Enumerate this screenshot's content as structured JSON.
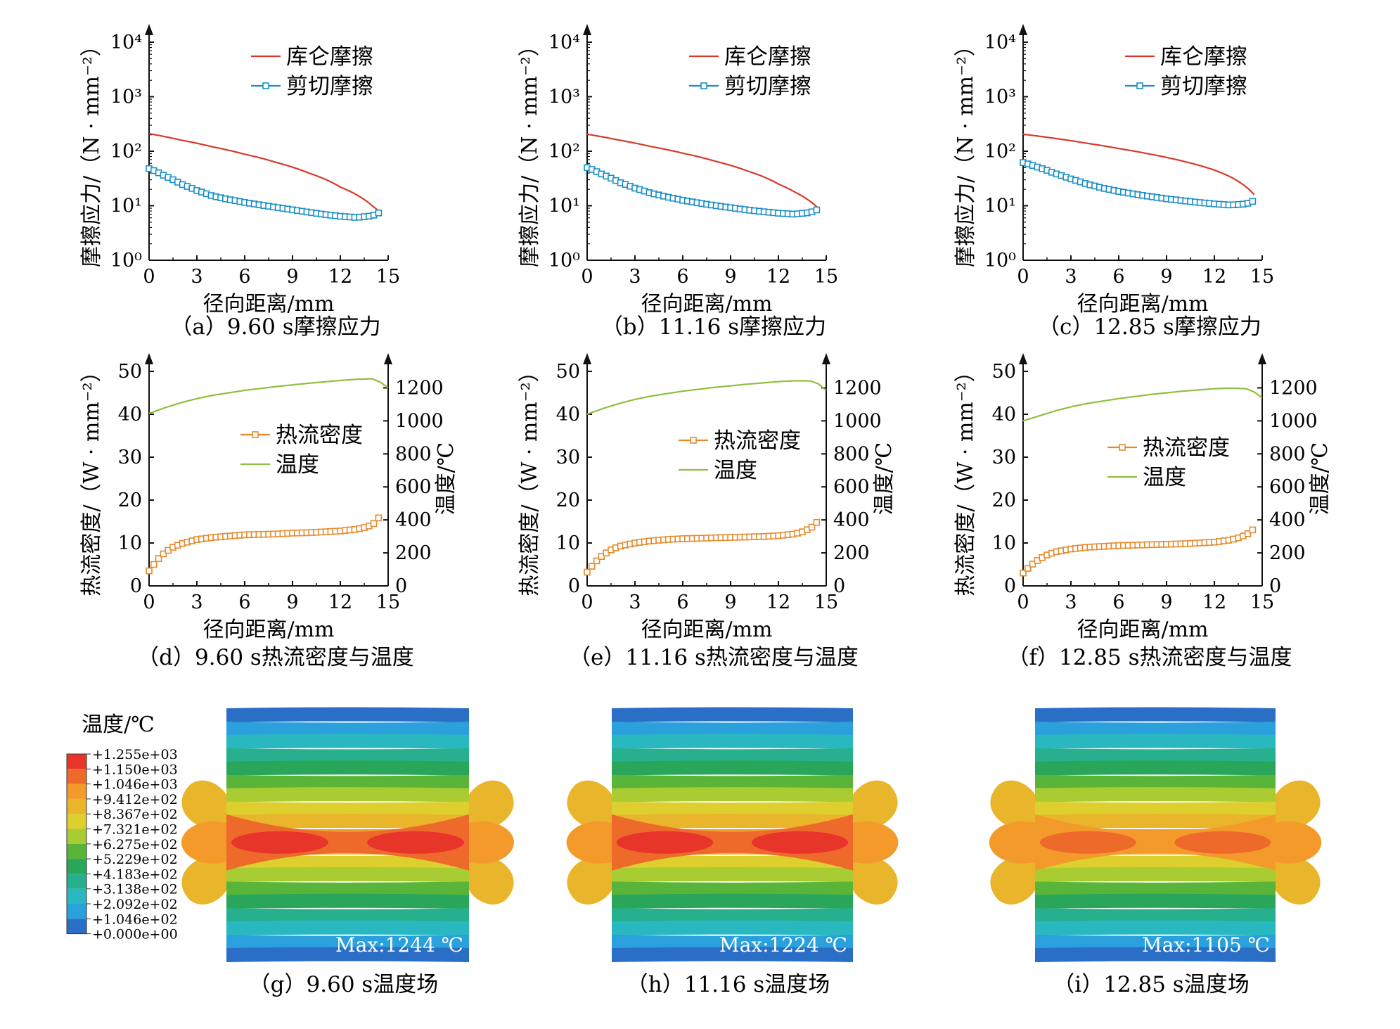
{
  "colors": {
    "coulomb": "#d83a2a",
    "shear": "#1a8fc6",
    "heat_flux": "#e58a2b",
    "temperature": "#8fbf3f",
    "axis": "#111111"
  },
  "colorbar": {
    "title": "温度/℃",
    "labels": [
      "+1.255e+03",
      "+1.150e+03",
      "+1.046e+03",
      "+9.412e+02",
      "+8.367e+02",
      "+7.321e+02",
      "+6.275e+02",
      "+5.229e+02",
      "+4.183e+02",
      "+3.138e+02",
      "+2.092e+02",
      "+1.046e+02",
      "+0.000e+00"
    ],
    "colors": [
      "#e8352a",
      "#ee6a2a",
      "#f39a2a",
      "#e9b52b",
      "#dccf2e",
      "#a9cc33",
      "#58b53a",
      "#2aa65a",
      "#26b08e",
      "#2ab8c0",
      "#2aa0dc",
      "#2a6ec6",
      "#2a3596"
    ]
  },
  "chart_data": [
    {
      "type": "line",
      "panel": "a",
      "caption": "（a）9.60 s摩擦应力",
      "xlabel": "径向距离/mm",
      "ylabel": "摩擦应力/（N · mm⁻²）",
      "xlim": [
        0,
        15
      ],
      "ylim": [
        1,
        10000
      ],
      "yscale": "log",
      "xticks": [
        "0",
        "3",
        "6",
        "9",
        "12",
        "15"
      ],
      "yticks": [
        "10⁰",
        "10¹",
        "10²",
        "10³",
        "10⁴"
      ],
      "legend": "top-right",
      "series": [
        {
          "name": "库仑摩擦",
          "style": "line",
          "x": [
            0,
            2,
            4,
            6,
            8,
            10,
            12,
            13,
            14,
            14.5
          ],
          "y": [
            210,
            160,
            120,
            88,
            62,
            40,
            22,
            16,
            10,
            7.5
          ]
        },
        {
          "name": "剪切摩擦",
          "style": "line-square",
          "x": [
            0,
            1,
            2,
            3,
            4,
            5,
            6,
            7,
            8,
            9,
            10,
            11,
            12,
            13,
            14,
            14.5
          ],
          "y": [
            48,
            35,
            25,
            19,
            15,
            13,
            11.5,
            10.3,
            9.3,
            8.4,
            7.6,
            6.9,
            6.4,
            6.1,
            6.5,
            7.6
          ]
        }
      ]
    },
    {
      "type": "line",
      "panel": "b",
      "caption": "（b）11.16 s摩擦应力",
      "xlabel": "径向距离/mm",
      "ylabel": "摩擦应力/（N · mm⁻²）",
      "xlim": [
        0,
        15
      ],
      "ylim": [
        1,
        10000
      ],
      "yscale": "log",
      "xticks": [
        "0",
        "3",
        "6",
        "9",
        "12",
        "15"
      ],
      "yticks": [
        "10⁰",
        "10¹",
        "10²",
        "10³",
        "10⁴"
      ],
      "legend": "top-right",
      "series": [
        {
          "name": "库仑摩擦",
          "style": "line",
          "x": [
            0,
            2,
            4,
            6,
            8,
            10,
            12,
            13,
            14,
            14.5
          ],
          "y": [
            205,
            160,
            122,
            92,
            66,
            44,
            25,
            18,
            12,
            9
          ]
        },
        {
          "name": "剪切摩擦",
          "style": "line-square",
          "x": [
            0,
            1,
            2,
            3,
            4,
            5,
            6,
            7,
            8,
            9,
            10,
            11,
            12,
            13,
            14,
            14.5
          ],
          "y": [
            50,
            37,
            27,
            21,
            17,
            14.5,
            12.6,
            11.2,
            10.1,
            9.2,
            8.4,
            7.8,
            7.3,
            7.0,
            7.5,
            8.6
          ]
        }
      ]
    },
    {
      "type": "line",
      "panel": "c",
      "caption": "（c）12.85 s摩擦应力",
      "xlabel": "径向距离/mm",
      "ylabel": "摩擦应力/（N · mm⁻²）",
      "xlim": [
        0,
        15
      ],
      "ylim": [
        1,
        10000
      ],
      "yscale": "log",
      "xticks": [
        "0",
        "3",
        "6",
        "9",
        "12",
        "15"
      ],
      "yticks": [
        "10⁰",
        "10¹",
        "10²",
        "10³",
        "10⁴"
      ],
      "legend": "top-right",
      "series": [
        {
          "name": "库仑摩擦",
          "style": "line",
          "x": [
            0,
            2,
            4,
            6,
            8,
            10,
            12,
            13,
            14,
            14.5
          ],
          "y": [
            205,
            172,
            140,
            112,
            88,
            66,
            45,
            34,
            22,
            16
          ]
        },
        {
          "name": "剪切摩擦",
          "style": "line-square",
          "x": [
            0,
            1,
            2,
            3,
            4,
            5,
            6,
            7,
            8,
            9,
            10,
            11,
            12,
            13,
            14,
            14.5
          ],
          "y": [
            62,
            50,
            39,
            31,
            25,
            21,
            18.3,
            16.3,
            14.7,
            13.4,
            12.4,
            11.5,
            10.8,
            10.3,
            10.8,
            12.3
          ]
        }
      ]
    },
    {
      "type": "line",
      "panel": "d",
      "caption": "（d）9.60 s热流密度与温度",
      "xlabel": "径向距离/mm",
      "ylabel": "热流密度/（W · mm⁻²）",
      "y2label": "温度/℃",
      "xlim": [
        0,
        15
      ],
      "ylim": [
        0,
        50
      ],
      "y2lim": [
        0,
        1300
      ],
      "xticks": [
        "0",
        "3",
        "6",
        "9",
        "12",
        "15"
      ],
      "yticks": [
        "0",
        "10",
        "20",
        "30",
        "40",
        "50"
      ],
      "y2ticks": [
        "0",
        "200",
        "400",
        "600",
        "800",
        "1000",
        "1200"
      ],
      "legend": "center-right",
      "series": [
        {
          "name": "热流密度",
          "axis": "left",
          "style": "line-square",
          "x": [
            0,
            0.5,
            1,
            1.5,
            2,
            3,
            4,
            5,
            6,
            7,
            8,
            9,
            10,
            11,
            12,
            13,
            13.5,
            14,
            14.3,
            14.5
          ],
          "y": [
            3.5,
            6,
            7.8,
            9,
            9.8,
            10.8,
            11.3,
            11.6,
            11.9,
            12.0,
            12.1,
            12.3,
            12.4,
            12.6,
            12.8,
            13.2,
            13.6,
            14.2,
            15.2,
            16.5
          ]
        },
        {
          "name": "温度",
          "axis": "right",
          "style": "line",
          "x": [
            0,
            1,
            2,
            3,
            4,
            6,
            8,
            10,
            12,
            13,
            14,
            14.5,
            15
          ],
          "y": [
            1045,
            1080,
            1110,
            1135,
            1155,
            1185,
            1208,
            1228,
            1245,
            1252,
            1255,
            1235,
            1200
          ]
        }
      ]
    },
    {
      "type": "line",
      "panel": "e",
      "caption": "（e）11.16 s热流密度与温度",
      "xlabel": "径向距离/mm",
      "ylabel": "热流密度/（W · mm⁻²）",
      "y2label": "温度/℃",
      "xlim": [
        0,
        15
      ],
      "ylim": [
        0,
        50
      ],
      "y2lim": [
        0,
        1300
      ],
      "xticks": [
        "0",
        "3",
        "6",
        "9",
        "12",
        "15"
      ],
      "yticks": [
        "0",
        "10",
        "20",
        "30",
        "40",
        "50"
      ],
      "y2ticks": [
        "0",
        "200",
        "400",
        "600",
        "800",
        "1000",
        "1200"
      ],
      "legend": "center-right",
      "series": [
        {
          "name": "热流密度",
          "axis": "left",
          "style": "line-square",
          "x": [
            0,
            0.5,
            1,
            1.5,
            2,
            3,
            4,
            5,
            6,
            7,
            8,
            9,
            10,
            11,
            12,
            13,
            13.5,
            14,
            14.3,
            14.5
          ],
          "y": [
            3.2,
            5.5,
            7.2,
            8.4,
            9.2,
            10.0,
            10.5,
            10.8,
            11.0,
            11.1,
            11.2,
            11.3,
            11.4,
            11.5,
            11.7,
            12.1,
            12.6,
            13.4,
            14.3,
            15.3
          ]
        },
        {
          "name": "温度",
          "axis": "right",
          "style": "line",
          "x": [
            0,
            1,
            2,
            3,
            4,
            6,
            8,
            10,
            12,
            13,
            14,
            14.5,
            15
          ],
          "y": [
            1040,
            1075,
            1105,
            1130,
            1150,
            1180,
            1203,
            1222,
            1238,
            1243,
            1242,
            1225,
            1185
          ]
        }
      ]
    },
    {
      "type": "line",
      "panel": "f",
      "caption": "（f）12.85 s热流密度与温度",
      "xlabel": "径向距离/mm",
      "ylabel": "热流密度/（W · mm⁻²）",
      "y2label": "温度/℃",
      "xlim": [
        0,
        15
      ],
      "ylim": [
        0,
        50
      ],
      "y2lim": [
        0,
        1300
      ],
      "xticks": [
        "0",
        "3",
        "6",
        "9",
        "12",
        "15"
      ],
      "yticks": [
        "0",
        "10",
        "20",
        "30",
        "40",
        "50"
      ],
      "y2ticks": [
        "0",
        "200",
        "400",
        "600",
        "800",
        "1000",
        "1200"
      ],
      "legend": "center-right",
      "series": [
        {
          "name": "热流密度",
          "axis": "left",
          "style": "line-square",
          "x": [
            0,
            0.5,
            1,
            1.5,
            2,
            3,
            4,
            5,
            6,
            7,
            8,
            9,
            10,
            11,
            12,
            13,
            13.5,
            14,
            14.3,
            14.5
          ],
          "y": [
            3.0,
            4.8,
            6.2,
            7.2,
            7.9,
            8.6,
            9.0,
            9.2,
            9.4,
            9.5,
            9.6,
            9.7,
            9.8,
            10.0,
            10.2,
            10.7,
            11.2,
            11.9,
            12.7,
            13.4
          ]
        },
        {
          "name": "温度",
          "axis": "right",
          "style": "line",
          "x": [
            0,
            1,
            2,
            3,
            4,
            6,
            8,
            10,
            12,
            13,
            14,
            14.5,
            15
          ],
          "y": [
            1000,
            1030,
            1060,
            1085,
            1105,
            1135,
            1160,
            1180,
            1195,
            1198,
            1195,
            1175,
            1140
          ]
        }
      ]
    }
  ],
  "fields": [
    {
      "panel": "g",
      "caption": "（g）9.60 s温度场",
      "max_label": "Max:1244 ℃"
    },
    {
      "panel": "h",
      "caption": "（h）11.16 s温度场",
      "max_label": "Max:1224 ℃"
    },
    {
      "panel": "i",
      "caption": "（i）12.85 s温度场",
      "max_label": "Max:1105 ℃"
    }
  ]
}
